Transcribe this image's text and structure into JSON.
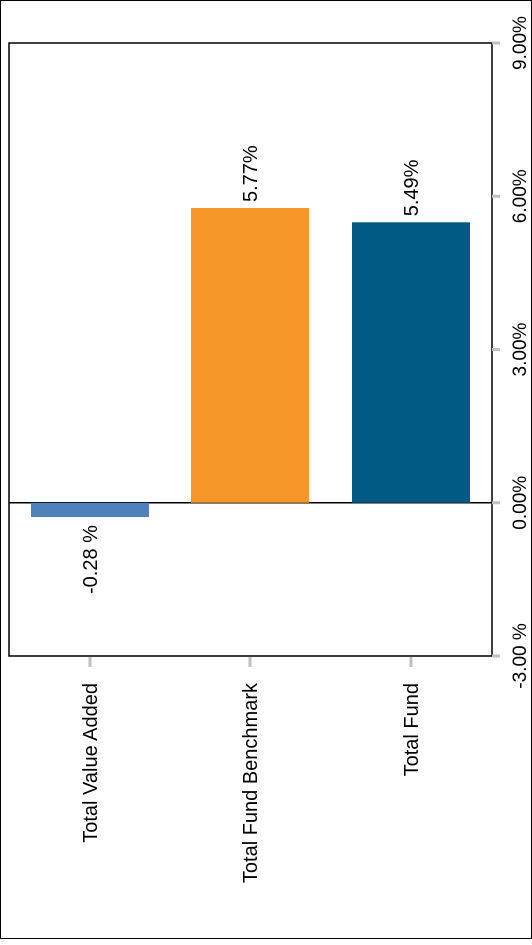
{
  "chart_data": {
    "type": "bar",
    "orientation": "horizontal",
    "rotation": "90deg-clockwise",
    "categories": [
      "Total Value Added",
      "Total Fund Benchmark",
      "Total Fund"
    ],
    "values": [
      -0.28,
      5.77,
      5.49
    ],
    "data_labels": [
      "-0.28 %",
      "5.77%",
      "5.49%"
    ],
    "colors": [
      "#4f81bd",
      "#f79628",
      "#005a84"
    ],
    "axis": {
      "min": -3.0,
      "max": 9.0,
      "ticks": [
        -3.0,
        0.0,
        3.0,
        6.0,
        9.0
      ],
      "tick_labels": [
        "-3.00 %",
        "0.00%",
        "3.00%",
        "6.00%",
        "9.00%"
      ]
    },
    "title": "",
    "xlabel": "",
    "ylabel": "",
    "grid": false,
    "legend": "none"
  }
}
